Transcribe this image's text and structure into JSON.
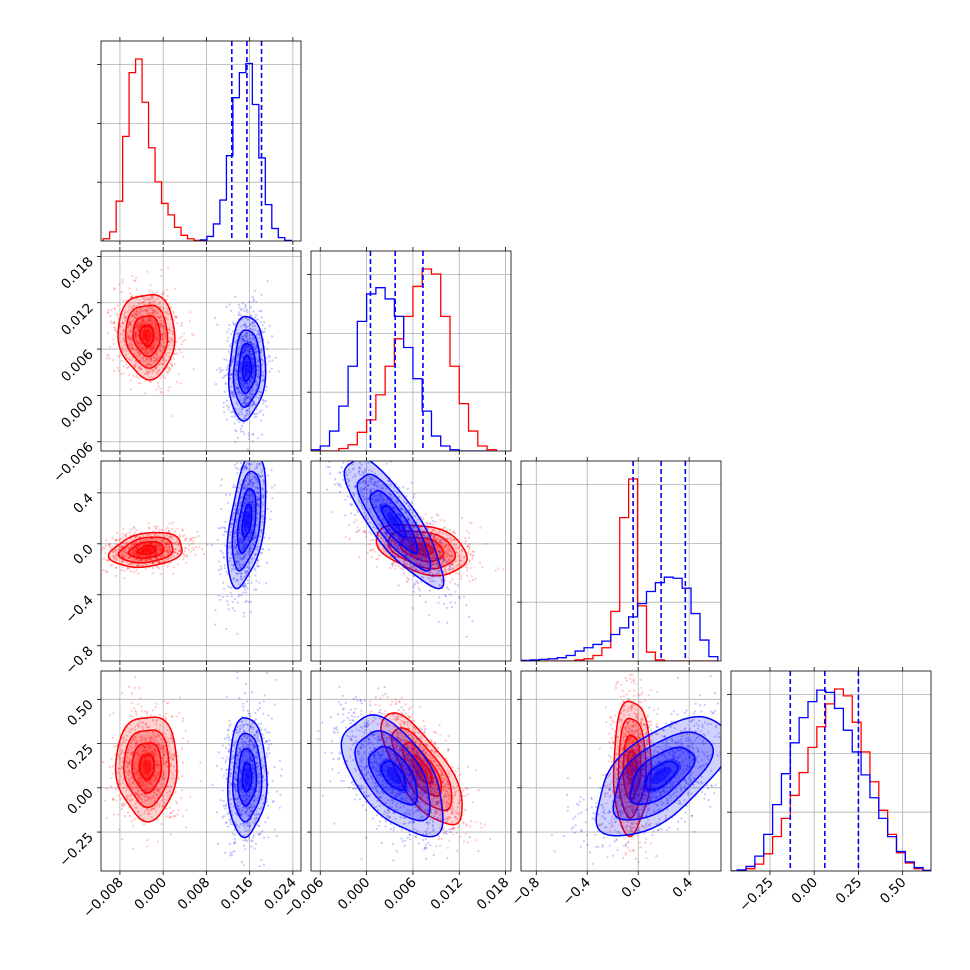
{
  "chart_data": {
    "type": "corner",
    "layout": "4x4 lower-triangular corner plot",
    "parameters": [
      {
        "key": "p1",
        "xlim": [
          -0.0115,
          0.0255
        ],
        "xticks": [
          -0.008,
          0.0,
          0.008,
          0.016,
          0.024
        ],
        "xtick_labels": [
          "−0.008",
          "0.000",
          "0.008",
          "0.016",
          "0.024"
        ],
        "ylim": null,
        "yticks": [],
        "ytick_labels": []
      },
      {
        "key": "p2",
        "xlim": [
          -0.0072,
          0.0187
        ],
        "xticks": [
          -0.006,
          0.0,
          0.006,
          0.012,
          0.018
        ],
        "xtick_labels": [
          "−0.006",
          "0.000",
          "0.006",
          "0.012",
          "0.018"
        ],
        "ylim": [
          -0.0072,
          0.0187
        ],
        "yticks": [
          -0.006,
          0.0,
          0.006,
          0.012,
          0.018
        ],
        "ytick_labels": [
          "−0.006",
          "0.000",
          "0.006",
          "0.012",
          "0.018"
        ]
      },
      {
        "key": "p3",
        "xlim": [
          -0.92,
          0.65
        ],
        "xticks": [
          -0.8,
          -0.4,
          0.0,
          0.4
        ],
        "xtick_labels": [
          "−0.8",
          "−0.4",
          "0.0",
          "0.4"
        ],
        "ylim": [
          -0.92,
          0.65
        ],
        "yticks": [
          -0.8,
          -0.4,
          0.0,
          0.4
        ],
        "ytick_labels": [
          "−0.8",
          "−0.4",
          "0.0",
          "0.4"
        ]
      },
      {
        "key": "p4",
        "xlim": [
          -0.47,
          0.66
        ],
        "xticks": [
          -0.25,
          0.0,
          0.25,
          0.5
        ],
        "xtick_labels": [
          "−0.25",
          "0.00",
          "0.25",
          "0.50"
        ],
        "ylim": [
          -0.47,
          0.66
        ],
        "yticks": [
          -0.25,
          0.0,
          0.25,
          0.5
        ],
        "ytick_labels": [
          "−0.25",
          "0.00",
          "0.25",
          "0.50"
        ]
      }
    ],
    "series": [
      {
        "color": "#ff0000",
        "marginals": [
          {
            "x": [
              -0.0105,
              -0.0093,
              -0.0081,
              -0.0069,
              -0.0057,
              -0.0045,
              -0.0033,
              -0.0021,
              -0.0009,
              0.0003,
              0.0015,
              0.0027,
              0.0039,
              0.0051,
              0.0063,
              0.0075
            ],
            "counts": [
              0.2,
              0.8,
              3.5,
              9.2,
              14.8,
              16.0,
              12.2,
              8.2,
              5.2,
              3.3,
              2.3,
              1.2,
              0.5,
              0.2,
              0.05,
              0.0
            ]
          },
          {
            "x": [
              -0.0066,
              -0.0054,
              -0.0042,
              -0.003,
              -0.0018,
              -0.0006,
              0.0006,
              0.0018,
              0.003,
              0.0042,
              0.0054,
              0.0066,
              0.0078,
              0.009,
              0.0102,
              0.0114,
              0.0126,
              0.0138,
              0.015,
              0.0162
            ],
            "counts": [
              0.0,
              0.0,
              0.0,
              0.2,
              0.5,
              1.5,
              2.5,
              4.5,
              6.8,
              9.0,
              10.8,
              13.2,
              14.6,
              14.2,
              10.8,
              6.8,
              3.8,
              1.6,
              0.4,
              0.1
            ]
          },
          {
            "x": [
              -0.88,
              -0.81,
              -0.74,
              -0.67,
              -0.6,
              -0.53,
              -0.46,
              -0.39,
              -0.32,
              -0.25,
              -0.18,
              -0.11,
              -0.04,
              0.03,
              0.1,
              0.17,
              0.24,
              0.31,
              0.38,
              0.45,
              0.52,
              0.59
            ],
            "counts": [
              0.0,
              0.0,
              0.0,
              0.0,
              0.0,
              0.0,
              0.1,
              0.2,
              0.5,
              1.2,
              4.5,
              13.0,
              16.5,
              5.0,
              0.8,
              0.1,
              0.0,
              0.0,
              0.0,
              0.0,
              0.0,
              0.0
            ]
          },
          {
            "x": [
              -0.46,
              -0.41,
              -0.36,
              -0.31,
              -0.26,
              -0.21,
              -0.16,
              -0.11,
              -0.06,
              -0.01,
              0.04,
              0.09,
              0.14,
              0.19,
              0.24,
              0.29,
              0.34,
              0.39,
              0.44,
              0.49,
              0.54,
              0.59,
              0.64
            ],
            "counts": [
              0.0,
              0.05,
              0.2,
              0.6,
              1.5,
              3.0,
              4.6,
              6.6,
              8.6,
              10.8,
              12.6,
              14.6,
              15.9,
              15.3,
              13.0,
              10.4,
              7.8,
              5.3,
              3.2,
              1.6,
              0.7,
              0.2,
              0.0
            ]
          }
        ],
        "blobs": [
          {
            "mean": [
              -0.003,
              0.0078,
              0.0,
              0.0
            ],
            "sd": [
              0.0025,
              0.0026,
              0.28,
              0.23
            ],
            "rho": -0.05
          },
          {
            "mean": [
              -0.003,
              0.0,
              -0.05,
              0.0
            ],
            "sd": [
              0.0032,
              0.0026,
              0.065,
              0.23
            ],
            "rho": 0.25
          },
          {
            "mean": [
              -0.003,
              0.0,
              0.0,
              0.12
            ],
            "sd": [
              0.0027,
              0.0026,
              0.28,
              0.14
            ],
            "rho": 0.0
          },
          {
            "mean": [
              0.0,
              0.0072,
              -0.04,
              0.0
            ],
            "sd": [
              0.0026,
              0.0028,
              0.095,
              0.23
            ],
            "rho": -0.35
          },
          {
            "mean": [
              0.0,
              0.0072,
              0.0,
              0.1
            ],
            "sd": [
              0.0026,
              0.0025,
              0.28,
              0.15
            ],
            "rho": -0.72
          },
          {
            "mean": [
              0.0,
              0.0,
              -0.05,
              0.12
            ],
            "sd": [
              0.0026,
              0.0026,
              0.07,
              0.18
            ],
            "rho": 0.05
          }
        ]
      },
      {
        "color": "#0000ff",
        "quantiles": [
          [
            0.0127,
            0.0155,
            0.0182
          ],
          [
            0.0005,
            0.0037,
            0.0073
          ],
          [
            -0.04,
            0.18,
            0.37
          ],
          [
            -0.135,
            0.06,
            0.25
          ]
        ],
        "marginals": [
          {
            "x": [
              0.0075,
              0.0087,
              0.0099,
              0.0111,
              0.0123,
              0.0135,
              0.0147,
              0.0159,
              0.0171,
              0.0183,
              0.0195,
              0.0207,
              0.0219,
              0.0231
            ],
            "counts": [
              0.1,
              0.4,
              1.5,
              3.6,
              7.5,
              12.6,
              14.8,
              15.6,
              12.0,
              7.3,
              3.2,
              1.1,
              0.3,
              0.05
            ]
          },
          {
            "x": [
              -0.0066,
              -0.0054,
              -0.0042,
              -0.003,
              -0.0018,
              -0.0006,
              0.0006,
              0.0018,
              0.003,
              0.0042,
              0.0054,
              0.0066,
              0.0078,
              0.009,
              0.0102,
              0.0114,
              0.0126,
              0.0138,
              0.015
            ],
            "counts": [
              0.1,
              0.4,
              1.6,
              3.6,
              6.8,
              10.4,
              12.6,
              13.1,
              12.2,
              10.8,
              8.3,
              5.8,
              3.2,
              1.2,
              0.4,
              0.1,
              0.0,
              0.0,
              0.0
            ]
          },
          {
            "x": [
              -0.88,
              -0.81,
              -0.74,
              -0.67,
              -0.6,
              -0.53,
              -0.46,
              -0.39,
              -0.32,
              -0.25,
              -0.18,
              -0.11,
              -0.04,
              0.03,
              0.1,
              0.17,
              0.24,
              0.31,
              0.38,
              0.45,
              0.52,
              0.59
            ],
            "counts": [
              0.05,
              0.1,
              0.15,
              0.2,
              0.3,
              0.5,
              0.9,
              1.2,
              1.5,
              1.8,
              2.4,
              3.0,
              4.0,
              5.2,
              6.3,
              7.1,
              7.6,
              7.5,
              6.6,
              4.3,
              1.9,
              0.4
            ]
          },
          {
            "x": [
              -0.46,
              -0.41,
              -0.36,
              -0.31,
              -0.26,
              -0.21,
              -0.16,
              -0.11,
              -0.06,
              -0.01,
              0.04,
              0.09,
              0.14,
              0.19,
              0.24,
              0.29,
              0.34,
              0.39,
              0.44,
              0.49,
              0.54,
              0.59,
              0.64
            ],
            "counts": [
              0.0,
              0.1,
              0.4,
              1.3,
              3.2,
              5.8,
              8.5,
              11.2,
              13.4,
              14.8,
              15.8,
              15.6,
              14.2,
              12.3,
              10.4,
              8.4,
              6.4,
              4.6,
              3.0,
              1.7,
              0.8,
              0.3,
              0.05
            ]
          }
        ],
        "blobs": [
          {
            "mean": [
              0.0155,
              0.0035,
              0.0,
              0.0
            ],
            "sd": [
              0.0016,
              0.0032,
              0.28,
              0.23
            ],
            "rho": 0.1
          },
          {
            "mean": [
              0.0155,
              0.0,
              0.18,
              0.0
            ],
            "sd": [
              0.0017,
              0.0026,
              0.25,
              0.23
            ],
            "rho": 0.45
          },
          {
            "mean": [
              0.0155,
              0.0,
              0.0,
              0.06
            ],
            "sd": [
              0.0017,
              0.0026,
              0.28,
              0.16
            ],
            "rho": 0.05
          },
          {
            "mean": [
              0.0,
              0.0035,
              0.18,
              0.0
            ],
            "sd": [
              0.0026,
              0.003,
              0.24,
              0.23
            ],
            "rho": -0.82
          },
          {
            "mean": [
              0.0,
              0.0035,
              0.0,
              0.07
            ],
            "sd": [
              0.0026,
              0.0031,
              0.28,
              0.16
            ],
            "rho": -0.55
          },
          {
            "mean": [
              0.0,
              0.0,
              0.18,
              0.07
            ],
            "sd": [
              0.0026,
              0.0026,
              0.25,
              0.16
            ],
            "rho": 0.6
          }
        ]
      }
    ]
  }
}
